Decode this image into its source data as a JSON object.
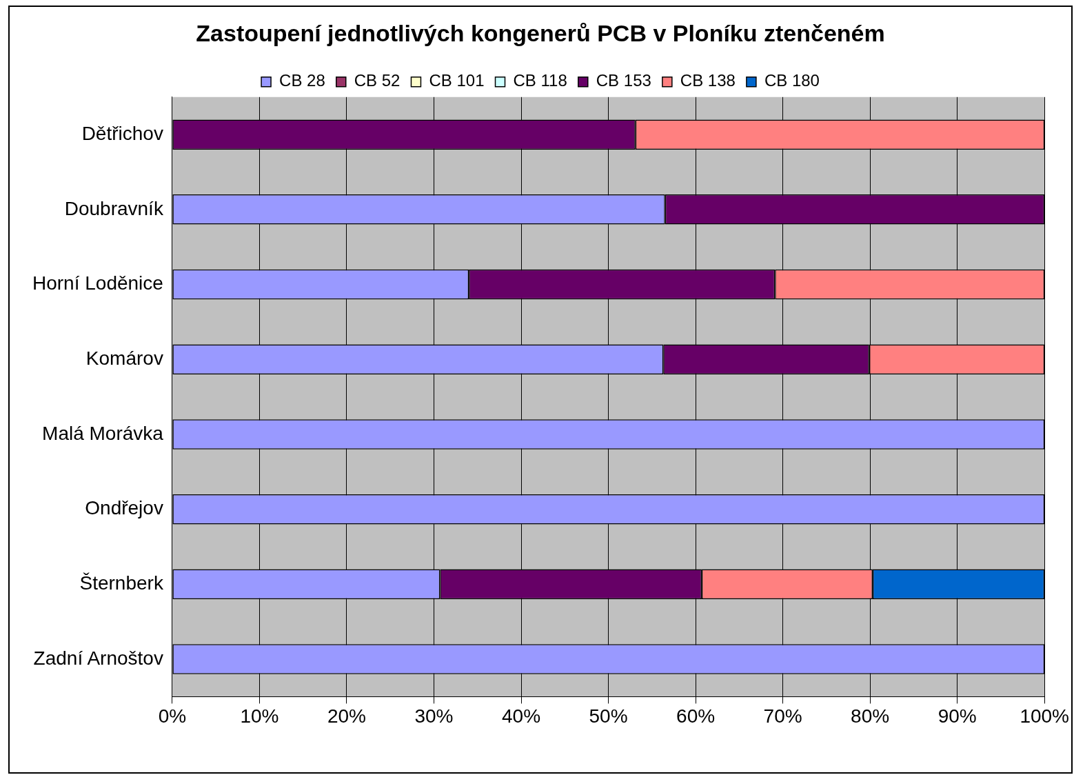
{
  "chart_data": {
    "type": "bar",
    "title": "Zastoupení jednotlivých kongenerů PCB v Ploníku ztenčeném",
    "orientation": "horizontal",
    "stacked": true,
    "categories": [
      "Dětřichov",
      "Doubravník",
      "Horní Loděnice",
      "Komárov",
      "Malá Morávka",
      "Ondřejov",
      "Šternberk",
      "Zadní Arnoštov"
    ],
    "series": [
      {
        "name": "CB 28",
        "color": "#9999ff",
        "values": [
          0,
          56.5,
          34,
          56.3,
          100,
          100,
          30.7,
          100
        ]
      },
      {
        "name": "CB 52",
        "color": "#993366",
        "values": [
          0,
          0,
          0,
          0,
          0,
          0,
          0,
          0
        ]
      },
      {
        "name": "CB 101",
        "color": "#ffffcc",
        "values": [
          0,
          0,
          0,
          0,
          0,
          0,
          0,
          0
        ]
      },
      {
        "name": "CB 118",
        "color": "#ccffff",
        "values": [
          0,
          0,
          0,
          0,
          0,
          0,
          0,
          0
        ]
      },
      {
        "name": "CB 153",
        "color": "#660066",
        "values": [
          53.1,
          43.5,
          35.1,
          23.6,
          0,
          0,
          30,
          0
        ]
      },
      {
        "name": "CB 138",
        "color": "#ff8080",
        "values": [
          46.9,
          0,
          30.9,
          20.1,
          0,
          0,
          19.6,
          0
        ]
      },
      {
        "name": "CB 180",
        "color": "#0066cc",
        "values": [
          0,
          0,
          0,
          0,
          0,
          0,
          19.7,
          0
        ]
      }
    ],
    "xlim": [
      0,
      100
    ],
    "xticks": [
      {
        "value": 0,
        "label": "0%"
      },
      {
        "value": 10,
        "label": "10%"
      },
      {
        "value": 20,
        "label": "20%"
      },
      {
        "value": 30,
        "label": "30%"
      },
      {
        "value": 40,
        "label": "40%"
      },
      {
        "value": 50,
        "label": "50%"
      },
      {
        "value": 60,
        "label": "60%"
      },
      {
        "value": 70,
        "label": "70%"
      },
      {
        "value": 80,
        "label": "80%"
      },
      {
        "value": 90,
        "label": "90%"
      },
      {
        "value": 100,
        "label": "100%"
      }
    ],
    "grid": "x",
    "legend": "top"
  }
}
